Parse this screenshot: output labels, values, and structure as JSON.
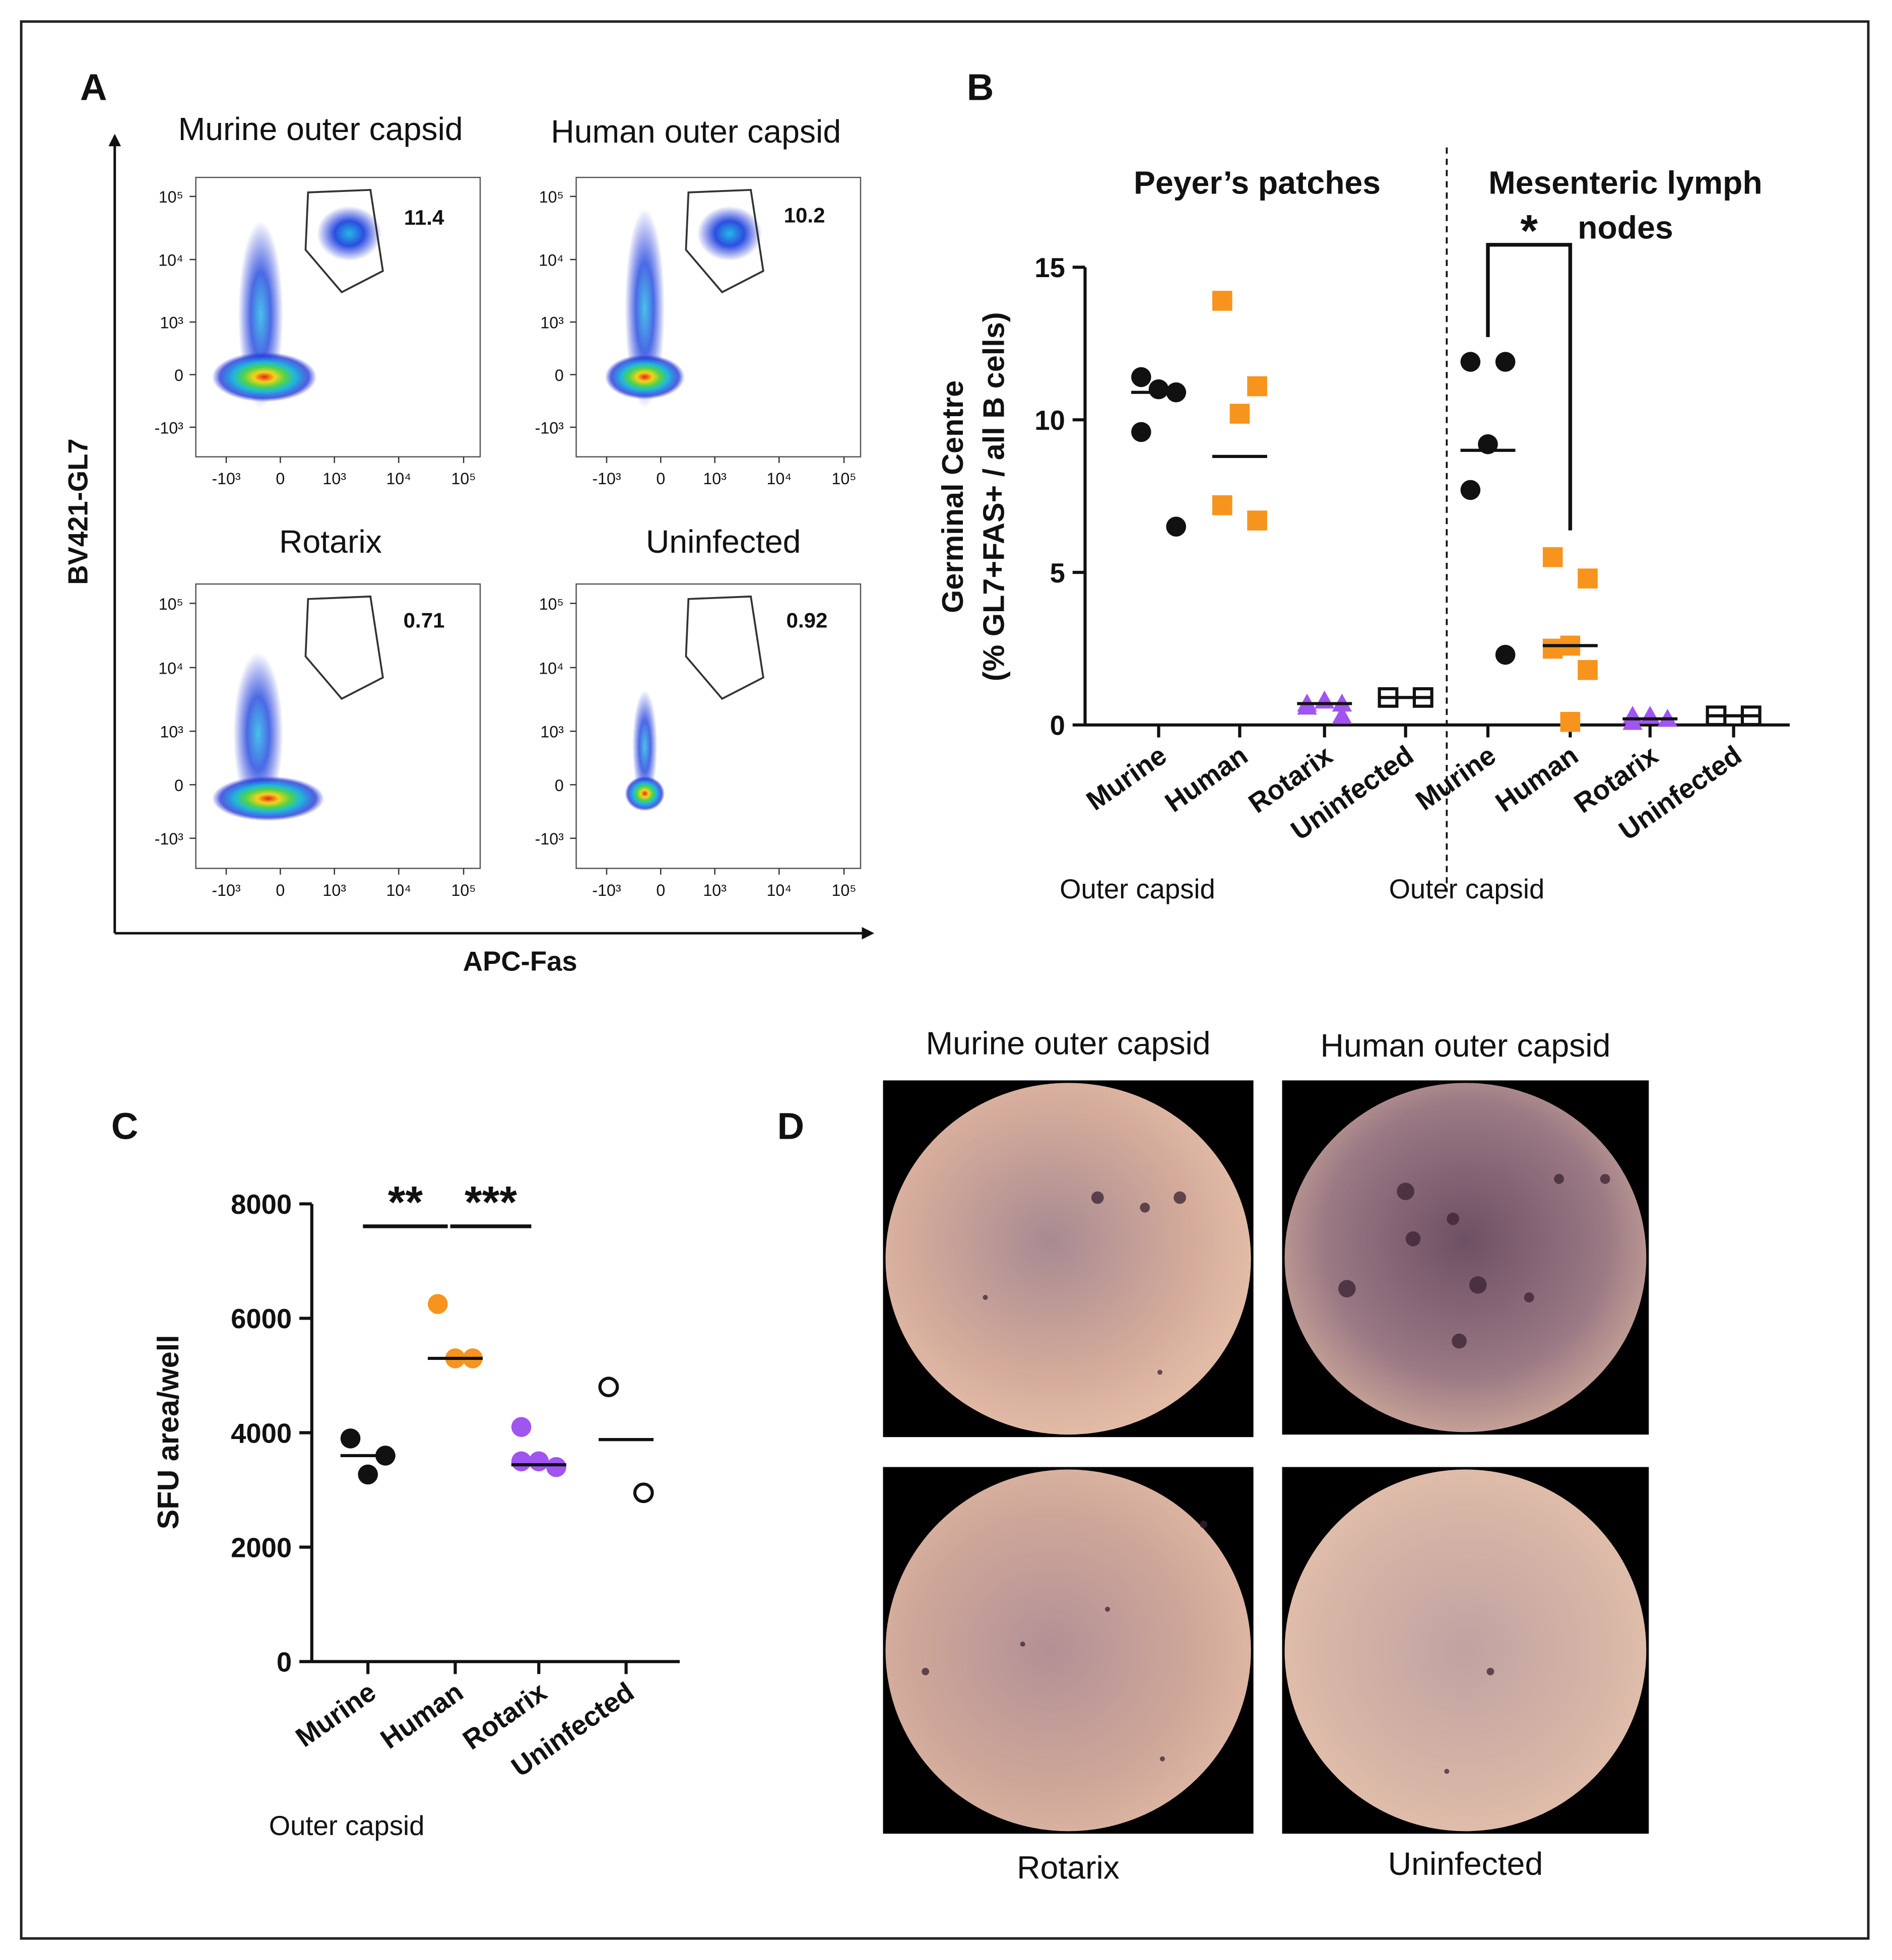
{
  "panel_letters": [
    "A",
    "B",
    "C",
    "D"
  ],
  "panel_a": {
    "ylabel": "BV421-GL7",
    "xlabel": "APC-Fas"
  },
  "chart_data": [
    {
      "type": "flow",
      "title": "Murine outer capsid",
      "gate_value": 11.4,
      "xlim": [
        -3000,
        180000
      ],
      "ylim": [
        -3000,
        200000
      ],
      "xticks": [
        {
          "value": -1000,
          "label": "-10³"
        },
        0,
        {
          "value": 1000,
          "label": "10³"
        },
        {
          "value": 10000,
          "label": "10⁴"
        },
        {
          "value": 100000,
          "label": "10⁵"
        }
      ],
      "yticks": [
        {
          "value": -1000,
          "label": "-10³"
        },
        0,
        {
          "value": 1000,
          "label": "10³"
        },
        {
          "value": 10000,
          "label": "10⁴"
        },
        {
          "value": 100000,
          "label": "10⁵"
        }
      ]
    },
    {
      "type": "flow",
      "title": "Human outer capsid",
      "gate_value": 10.2,
      "xlim": [
        -3000,
        180000
      ],
      "ylim": [
        -3000,
        200000
      ],
      "xticks": [
        {
          "value": -1000,
          "label": "-10³"
        },
        0,
        {
          "value": 1000,
          "label": "10³"
        },
        {
          "value": 10000,
          "label": "10⁴"
        },
        {
          "value": 100000,
          "label": "10⁵"
        }
      ],
      "yticks": [
        {
          "value": -1000,
          "label": "-10³"
        },
        0,
        {
          "value": 1000,
          "label": "10³"
        },
        {
          "value": 10000,
          "label": "10⁴"
        },
        {
          "value": 100000,
          "label": "10⁵"
        }
      ]
    },
    {
      "type": "flow",
      "title": "Rotarix",
      "gate_value": 0.71,
      "xlim": [
        -3000,
        180000
      ],
      "ylim": [
        -3000,
        200000
      ],
      "xticks": [
        {
          "value": -1000,
          "label": "-10³"
        },
        0,
        {
          "value": 1000,
          "label": "10³"
        },
        {
          "value": 10000,
          "label": "10⁴"
        },
        {
          "value": 100000,
          "label": "10⁵"
        }
      ],
      "yticks": [
        {
          "value": -1000,
          "label": "-10³"
        },
        0,
        {
          "value": 1000,
          "label": "10³"
        },
        {
          "value": 10000,
          "label": "10⁴"
        },
        {
          "value": 100000,
          "label": "10⁵"
        }
      ]
    },
    {
      "type": "flow",
      "title": "Uninfected",
      "gate_value": 0.92,
      "xlim": [
        -3000,
        180000
      ],
      "ylim": [
        -3000,
        200000
      ],
      "xticks": [
        {
          "value": -1000,
          "label": "-10³"
        },
        0,
        {
          "value": 1000,
          "label": "10³"
        },
        {
          "value": 10000,
          "label": "10⁴"
        },
        {
          "value": 100000,
          "label": "10⁵"
        }
      ],
      "yticks": [
        {
          "value": -1000,
          "label": "-10³"
        },
        0,
        {
          "value": 1000,
          "label": "10³"
        },
        {
          "value": 10000,
          "label": "10⁴"
        },
        {
          "value": 100000,
          "label": "10⁵"
        }
      ]
    },
    {
      "type": "dot",
      "ylabel": [
        "Germinal Centre",
        "(% GL7+FAS+ / all B cells)"
      ],
      "ylim": [
        0,
        15
      ],
      "yticks": [
        0,
        5,
        10,
        15
      ],
      "markers": [
        "circle",
        "square",
        "triangle",
        "open-square"
      ],
      "colors": [
        "#111111",
        "#f7941d",
        "#a054f0",
        "#111111"
      ],
      "sections": [
        {
          "title": [
            "Peyer’s patches"
          ],
          "subtitle": "Outer capsid",
          "categories": [
            "Murine",
            "Human",
            "Rotarix",
            "Uninfected"
          ],
          "values": [
            [
              11.4,
              10.9,
              11.0,
              9.6,
              6.5
            ],
            [
              13.9,
              11.1,
              10.2,
              7.2,
              6.7
            ],
            [
              0.7,
              0.7,
              0.8,
              0.6,
              0.3
            ],
            [
              0.9,
              0.9
            ]
          ],
          "centers": [
            10.9,
            8.8,
            0.7,
            0.9
          ]
        },
        {
          "title": [
            "Mesenteric lymph",
            "nodes"
          ],
          "subtitle": "Outer capsid",
          "categories": [
            "Murine",
            "Human",
            "Rotarix",
            "Uninfected"
          ],
          "values": [
            [
              11.9,
              11.9,
              9.2,
              7.7,
              2.3
            ],
            [
              5.5,
              4.8,
              2.6,
              2.5,
              1.8,
              0.1
            ],
            [
              0.3,
              0.2,
              0.3,
              0.1,
              0.2
            ],
            [
              0.3,
              0.3
            ]
          ],
          "centers": [
            9.0,
            2.6,
            0.2,
            0.3
          ],
          "significance": [
            "*"
          ]
        }
      ]
    },
    {
      "type": "dot",
      "ylabel": [
        "SFU area/well"
      ],
      "ylim": [
        0,
        8000
      ],
      "yticks": [
        0,
        2000,
        4000,
        6000,
        8000
      ],
      "markers": [
        "circle",
        "circle",
        "circle",
        "open-circle"
      ],
      "colors": [
        "#111111",
        "#f7941d",
        "#a054f0",
        "#111111"
      ],
      "sections": [
        {
          "subtitle": "Outer capsid",
          "categories": [
            "Murine",
            "Human",
            "Rotarix",
            "Uninfected"
          ],
          "values": [
            [
              3900,
              3600,
              3270
            ],
            [
              6250,
              5300,
              5300
            ],
            [
              4100,
              3400,
              3500,
              3500,
              3400
            ],
            [
              4800,
              2950
            ]
          ],
          "centers": [
            3600,
            5300,
            3440,
            3880
          ],
          "significance": [
            "**",
            "***"
          ]
        }
      ]
    }
  ],
  "panel_d": {
    "images": [
      {
        "label": "Murine outer capsid"
      },
      {
        "label": "Human outer capsid"
      },
      {
        "label": "Rotarix"
      },
      {
        "label": "Uninfected"
      }
    ]
  }
}
